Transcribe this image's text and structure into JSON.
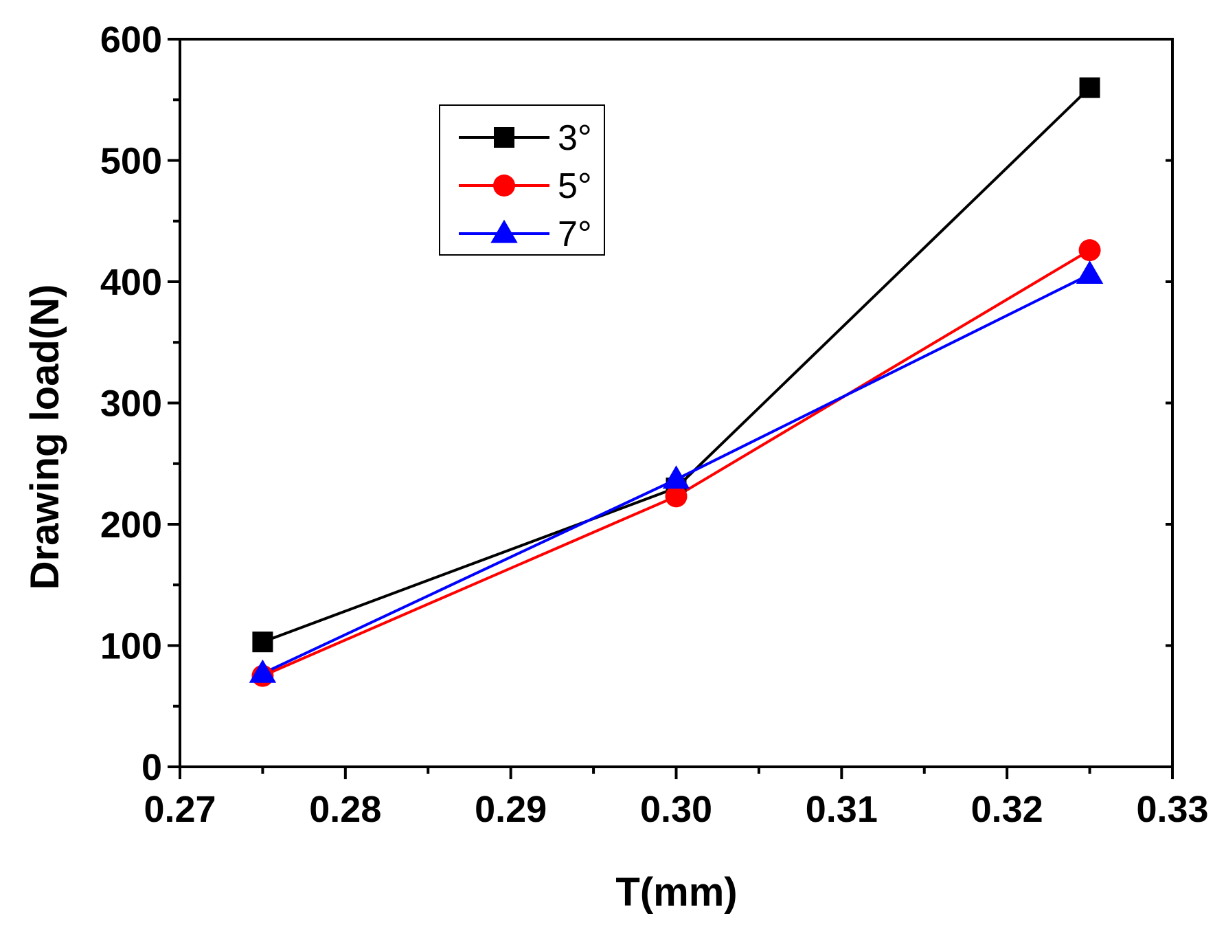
{
  "chart_data": {
    "type": "line",
    "title": "",
    "xlabel": "T(mm)",
    "ylabel": "Drawing load(N)",
    "xlim": [
      0.27,
      0.33
    ],
    "ylim": [
      0,
      600
    ],
    "x_ticks": [
      "0.27",
      "0.28",
      "0.29",
      "0.30",
      "0.31",
      "0.32",
      "0.33"
    ],
    "x_tick_values": [
      0.27,
      0.28,
      0.29,
      0.3,
      0.31,
      0.32,
      0.33
    ],
    "y_ticks": [
      "0",
      "100",
      "200",
      "300",
      "400",
      "500",
      "600"
    ],
    "y_tick_values": [
      0,
      100,
      200,
      300,
      400,
      500,
      600
    ],
    "x": [
      0.275,
      0.3,
      0.325
    ],
    "legend_position": "top-left",
    "series": [
      {
        "name": "3°",
        "values": [
          103,
          230,
          560
        ],
        "color": "#000000",
        "marker": "square"
      },
      {
        "name": "5°",
        "values": [
          75,
          223,
          426
        ],
        "color": "#ff0000",
        "marker": "circle"
      },
      {
        "name": "7°",
        "values": [
          77,
          237,
          406
        ],
        "color": "#0000ff",
        "marker": "triangle"
      }
    ]
  }
}
